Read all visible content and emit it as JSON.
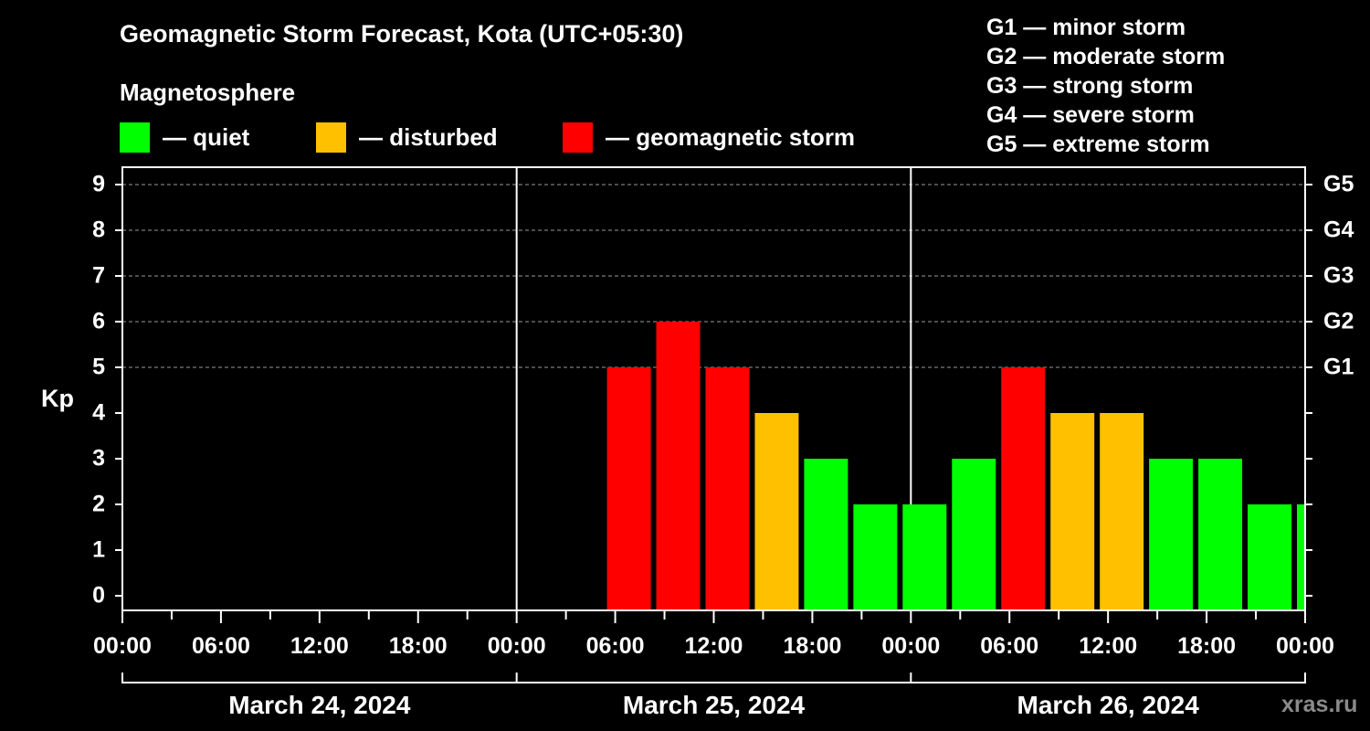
{
  "title": "Geomagnetic Storm Forecast, Kota (UTC+05:30)",
  "legend": {
    "heading": "Magnetosphere",
    "items": [
      {
        "label": "— quiet",
        "color": "#00ff00"
      },
      {
        "label": "— disturbed",
        "color": "#ffc000"
      },
      {
        "label": "— geomagnetic storm",
        "color": "#ff0000"
      }
    ]
  },
  "storm_scale": [
    "G1 — minor storm",
    "G2 — moderate storm",
    "G3 — strong storm",
    "G4 — severe storm",
    "G5 — extreme storm"
  ],
  "watermark": "xras.ru",
  "chart_data": {
    "type": "bar",
    "ylabel": "Kp",
    "ylim": [
      0,
      9
    ],
    "y_ticks": [
      0,
      1,
      2,
      3,
      4,
      5,
      6,
      7,
      8,
      9
    ],
    "right_axis": [
      {
        "kp": 5,
        "label": "G1"
      },
      {
        "kp": 6,
        "label": "G2"
      },
      {
        "kp": 7,
        "label": "G3"
      },
      {
        "kp": 8,
        "label": "G4"
      },
      {
        "kp": 9,
        "label": "G5"
      }
    ],
    "x_range_hours": [
      0,
      72
    ],
    "x_tick_labels": [
      "00:00",
      "06:00",
      "12:00",
      "18:00",
      "00:00",
      "06:00",
      "12:00",
      "18:00",
      "00:00",
      "06:00",
      "12:00",
      "18:00",
      "00:00"
    ],
    "days": [
      "March 24, 2024",
      "March 25, 2024",
      "March 26, 2024"
    ],
    "grid": "horizontal dashed at Kp 5–9",
    "bars": [
      {
        "start": "March 25, 2024 05:30",
        "kp": 5,
        "color": "#ff0000"
      },
      {
        "start": "March 25, 2024 08:30",
        "kp": 6,
        "color": "#ff0000"
      },
      {
        "start": "March 25, 2024 11:30",
        "kp": 5,
        "color": "#ff0000"
      },
      {
        "start": "March 25, 2024 14:30",
        "kp": 4,
        "color": "#ffc000"
      },
      {
        "start": "March 25, 2024 17:30",
        "kp": 3,
        "color": "#00ff00"
      },
      {
        "start": "March 25, 2024 20:30",
        "kp": 2,
        "color": "#00ff00"
      },
      {
        "start": "March 25, 2024 23:30",
        "kp": 2,
        "color": "#00ff00"
      },
      {
        "start": "March 26, 2024 02:30",
        "kp": 3,
        "color": "#00ff00"
      },
      {
        "start": "March 26, 2024 05:30",
        "kp": 5,
        "color": "#ff0000"
      },
      {
        "start": "March 26, 2024 08:30",
        "kp": 4,
        "color": "#ffc000"
      },
      {
        "start": "March 26, 2024 11:30",
        "kp": 4,
        "color": "#ffc000"
      },
      {
        "start": "March 26, 2024 14:30",
        "kp": 3,
        "color": "#00ff00"
      },
      {
        "start": "March 26, 2024 17:30",
        "kp": 3,
        "color": "#00ff00"
      },
      {
        "start": "March 26, 2024 20:30",
        "kp": 2,
        "color": "#00ff00"
      },
      {
        "start": "March 26, 2024 23:30",
        "kp": 2,
        "color": "#00ff00"
      }
    ]
  }
}
